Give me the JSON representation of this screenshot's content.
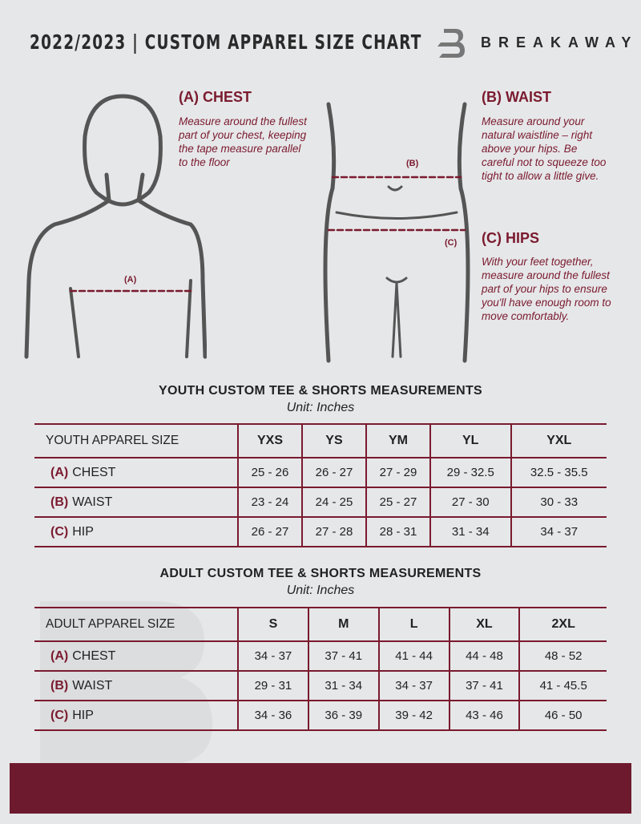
{
  "header": {
    "title": "2022/2023  |  CUSTOM APPAREL SIZE CHART",
    "brand": "BREAKAWAY"
  },
  "colors": {
    "accent": "#7a1a2e",
    "background": "#e6e7e9",
    "footer": "#6e1a2e"
  },
  "guide": {
    "chest": {
      "heading": "(A) CHEST",
      "text": "Measure around the fullest part of your chest, keeping the tape measure parallel to the floor",
      "marker": "(A)"
    },
    "waist": {
      "heading": "(B) WAIST",
      "text": "Measure around your natural waistline – right above your hips. Be careful not to squeeze too tight to allow a little give.",
      "marker": "(B)"
    },
    "hips": {
      "heading": "(C) HIPS",
      "text": "With your feet together, measure around the fullest part of your hips to ensure you'll have enough room to move comfortably.",
      "marker": "(C)"
    }
  },
  "youth": {
    "title": "YOUTH CUSTOM TEE & SHORTS MEASUREMENTS",
    "unit": "Unit: Inches",
    "header": [
      "YOUTH APPAREL SIZE",
      "YXS",
      "YS",
      "YM",
      "YL",
      "YXL"
    ],
    "rows": [
      {
        "letter": "(A)",
        "label": "CHEST",
        "values": [
          "25 - 26",
          "26 - 27",
          "27 - 29",
          "29 - 32.5",
          "32.5 - 35.5"
        ]
      },
      {
        "letter": "(B)",
        "label": "WAIST",
        "values": [
          "23 - 24",
          "24 - 25",
          "25 - 27",
          "27 - 30",
          "30 - 33"
        ]
      },
      {
        "letter": "(C)",
        "label": "HIP",
        "values": [
          "26 - 27",
          "27 - 28",
          "28 - 31",
          "31 - 34",
          "34 - 37"
        ]
      }
    ]
  },
  "adult": {
    "title": "ADULT CUSTOM TEE & SHORTS MEASUREMENTS",
    "unit": "Unit: Inches",
    "header": [
      "ADULT APPAREL SIZE",
      "S",
      "M",
      "L",
      "XL",
      "2XL"
    ],
    "rows": [
      {
        "letter": "(A)",
        "label": "CHEST",
        "values": [
          "34 - 37",
          "37 - 41",
          "41 - 44",
          "44 - 48",
          "48 - 52"
        ]
      },
      {
        "letter": "(B)",
        "label": "WAIST",
        "values": [
          "29 - 31",
          "31 - 34",
          "34 - 37",
          "37 - 41",
          "41 - 45.5"
        ]
      },
      {
        "letter": "(C)",
        "label": "HIP",
        "values": [
          "34 - 36",
          "36 - 39",
          "39 - 42",
          "43 - 46",
          "46 - 50"
        ]
      }
    ]
  }
}
